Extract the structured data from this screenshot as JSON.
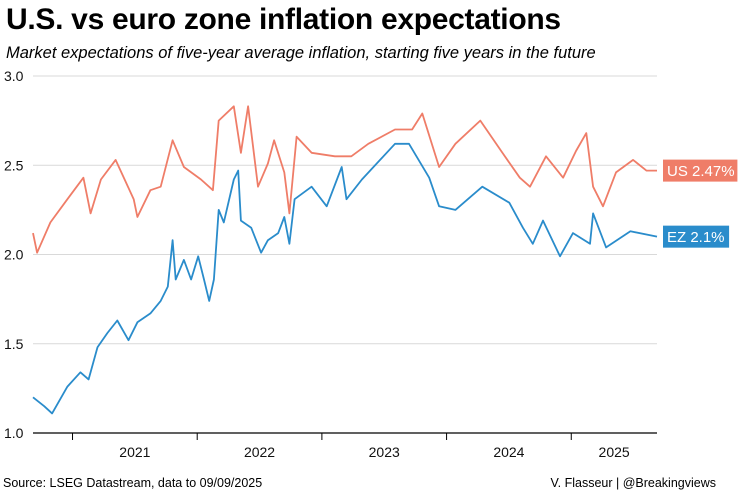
{
  "header": {
    "title": "U.S. vs euro zone inflation expectations",
    "subtitle": "Market expectations of five-year average inflation, starting five years in the future"
  },
  "footer": {
    "source": "Source: LSEG Datastream, data to 09/09/2025",
    "credit": "V. Flasseur | @Breakingviews"
  },
  "chart_data": {
    "type": "line",
    "title": "U.S. vs euro zone inflation expectations",
    "subtitle": "Market expectations of five-year average inflation, starting five years in the future",
    "xlabel": "",
    "ylabel": "",
    "ylim": [
      1.0,
      3.0
    ],
    "yticks": [
      "1.0",
      "1.5",
      "2.0",
      "2.5",
      "3.0"
    ],
    "xlim": [
      "2020-09-07",
      "2025-09-09"
    ],
    "xticks": [
      "2021",
      "2022",
      "2023",
      "2024",
      "2025"
    ],
    "grid": "horizontal",
    "legend": "end-labels-right",
    "series": [
      {
        "name": "US",
        "end_label": "US 2.47%",
        "color": "#ef7d68",
        "points": [
          [
            "2020-09-07",
            2.12
          ],
          [
            "2020-09-19",
            2.01
          ],
          [
            "2020-10-28",
            2.18
          ],
          [
            "2020-12-17",
            2.31
          ],
          [
            "2021-02-02",
            2.43
          ],
          [
            "2021-02-23",
            2.23
          ],
          [
            "2021-03-25",
            2.42
          ],
          [
            "2021-05-07",
            2.53
          ],
          [
            "2021-06-29",
            2.31
          ],
          [
            "2021-07-10",
            2.21
          ],
          [
            "2021-08-17",
            2.36
          ],
          [
            "2021-09-16",
            2.38
          ],
          [
            "2021-10-21",
            2.64
          ],
          [
            "2021-11-23",
            2.49
          ],
          [
            "2022-01-12",
            2.42
          ],
          [
            "2022-02-16",
            2.36
          ],
          [
            "2022-03-05",
            2.75
          ],
          [
            "2022-04-18",
            2.83
          ],
          [
            "2022-05-09",
            2.57
          ],
          [
            "2022-05-30",
            2.83
          ],
          [
            "2022-06-28",
            2.38
          ],
          [
            "2022-07-27",
            2.51
          ],
          [
            "2022-08-14",
            2.64
          ],
          [
            "2022-09-13",
            2.46
          ],
          [
            "2022-09-28",
            2.23
          ],
          [
            "2022-10-19",
            2.66
          ],
          [
            "2022-12-02",
            2.57
          ],
          [
            "2023-02-08",
            2.55
          ],
          [
            "2023-03-28",
            2.55
          ],
          [
            "2023-05-17",
            2.62
          ],
          [
            "2023-08-03",
            2.7
          ],
          [
            "2023-09-22",
            2.7
          ],
          [
            "2023-10-22",
            2.79
          ],
          [
            "2023-12-10",
            2.49
          ],
          [
            "2024-01-27",
            2.62
          ],
          [
            "2024-04-09",
            2.75
          ],
          [
            "2024-06-13",
            2.57
          ],
          [
            "2024-08-03",
            2.43
          ],
          [
            "2024-09-02",
            2.38
          ],
          [
            "2024-10-19",
            2.55
          ],
          [
            "2024-12-08",
            2.43
          ],
          [
            "2025-01-15",
            2.58
          ],
          [
            "2025-02-14",
            2.68
          ],
          [
            "2025-03-06",
            2.38
          ],
          [
            "2025-04-04",
            2.27
          ],
          [
            "2025-05-12",
            2.46
          ],
          [
            "2025-07-01",
            2.53
          ],
          [
            "2025-08-09",
            2.47
          ],
          [
            "2025-09-09",
            2.47
          ]
        ]
      },
      {
        "name": "EZ",
        "end_label": "EZ 2.1%",
        "color": "#2a8ccb",
        "points": [
          [
            "2020-09-07",
            1.2
          ],
          [
            "2020-10-10",
            1.15
          ],
          [
            "2020-11-02",
            1.11
          ],
          [
            "2020-12-17",
            1.26
          ],
          [
            "2021-01-24",
            1.34
          ],
          [
            "2021-02-17",
            1.3
          ],
          [
            "2021-03-15",
            1.48
          ],
          [
            "2021-04-13",
            1.56
          ],
          [
            "2021-05-12",
            1.63
          ],
          [
            "2021-06-14",
            1.52
          ],
          [
            "2021-07-10",
            1.62
          ],
          [
            "2021-08-17",
            1.67
          ],
          [
            "2021-09-16",
            1.74
          ],
          [
            "2021-10-07",
            1.82
          ],
          [
            "2021-10-21",
            2.08
          ],
          [
            "2021-10-30",
            1.86
          ],
          [
            "2021-11-23",
            1.97
          ],
          [
            "2021-12-14",
            1.86
          ],
          [
            "2022-01-04",
            1.99
          ],
          [
            "2022-01-21",
            1.86
          ],
          [
            "2022-02-05",
            1.74
          ],
          [
            "2022-02-19",
            1.86
          ],
          [
            "2022-03-05",
            2.25
          ],
          [
            "2022-03-20",
            2.18
          ],
          [
            "2022-04-18",
            2.42
          ],
          [
            "2022-05-01",
            2.47
          ],
          [
            "2022-05-09",
            2.19
          ],
          [
            "2022-06-08",
            2.15
          ],
          [
            "2022-07-07",
            2.01
          ],
          [
            "2022-07-27",
            2.08
          ],
          [
            "2022-08-26",
            2.12
          ],
          [
            "2022-09-13",
            2.21
          ],
          [
            "2022-09-28",
            2.06
          ],
          [
            "2022-10-13",
            2.31
          ],
          [
            "2022-12-02",
            2.38
          ],
          [
            "2023-01-15",
            2.27
          ],
          [
            "2023-02-28",
            2.49
          ],
          [
            "2023-03-14",
            2.31
          ],
          [
            "2023-04-28",
            2.42
          ],
          [
            "2023-08-03",
            2.62
          ],
          [
            "2023-09-13",
            2.62
          ],
          [
            "2023-11-11",
            2.43
          ],
          [
            "2023-12-10",
            2.27
          ],
          [
            "2024-01-27",
            2.25
          ],
          [
            "2024-04-15",
            2.38
          ],
          [
            "2024-07-03",
            2.29
          ],
          [
            "2024-08-12",
            2.15
          ],
          [
            "2024-09-10",
            2.06
          ],
          [
            "2024-10-10",
            2.19
          ],
          [
            "2024-11-29",
            1.99
          ],
          [
            "2025-01-06",
            2.12
          ],
          [
            "2025-02-25",
            2.06
          ],
          [
            "2025-03-06",
            2.23
          ],
          [
            "2025-04-13",
            2.04
          ],
          [
            "2025-06-23",
            2.13
          ],
          [
            "2025-09-09",
            2.1
          ]
        ]
      }
    ]
  }
}
